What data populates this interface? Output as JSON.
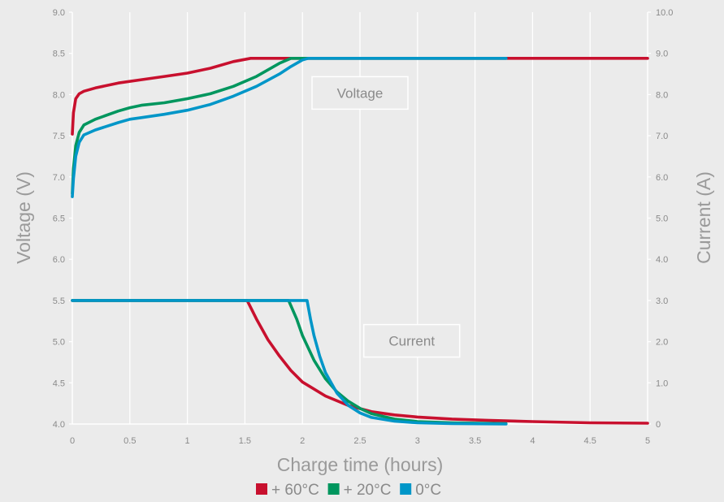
{
  "chart_data": {
    "type": "line",
    "title": "",
    "xlabel": "Charge time (hours)",
    "ylabel": "Voltage (V)",
    "y2label": "Current (A)",
    "xlim": [
      0,
      5
    ],
    "ylim": [
      4.0,
      9.0
    ],
    "y2lim": [
      0,
      10.0
    ],
    "x_ticks": [
      "0",
      "0.5",
      "1",
      "1.5",
      "2",
      "2.5",
      "3",
      "3.5",
      "4",
      "4.5",
      "5"
    ],
    "y_ticks": [
      "4.0",
      "4.5",
      "5.0",
      "5.5",
      "6.0",
      "6.5",
      "7.0",
      "7.5",
      "8.0",
      "8.5",
      "9.0"
    ],
    "y2_ticks": [
      "0",
      "1.0",
      "2.0",
      "3.0",
      "4.0",
      "5.0",
      "6.0",
      "7.0",
      "8.0",
      "9.0",
      "10.0"
    ],
    "grid": "vertical",
    "legend_position": "bottom",
    "annotations": [
      {
        "text": "Voltage",
        "x": 2.5,
        "y": 8.02
      },
      {
        "text": "Current",
        "x": 2.95,
        "y": 5.01
      }
    ],
    "series": [
      {
        "name": "+ 60°C",
        "quantity": "voltage",
        "axis": "left",
        "color": "#c8102e",
        "x": [
          0,
          0.01,
          0.03,
          0.06,
          0.1,
          0.2,
          0.4,
          0.6,
          0.8,
          1.0,
          1.2,
          1.4,
          1.55,
          2.0,
          3.0,
          4.0,
          5.0
        ],
        "y": [
          7.52,
          7.78,
          7.95,
          8.01,
          8.04,
          8.08,
          8.14,
          8.18,
          8.22,
          8.26,
          8.32,
          8.4,
          8.44,
          8.44,
          8.44,
          8.44,
          8.44
        ]
      },
      {
        "name": "+ 20°C",
        "quantity": "voltage",
        "axis": "left",
        "color": "#00965e",
        "x": [
          0,
          0.01,
          0.03,
          0.06,
          0.1,
          0.2,
          0.4,
          0.5,
          0.6,
          0.8,
          1.0,
          1.2,
          1.4,
          1.6,
          1.8,
          1.9,
          2.0,
          3.0,
          3.77
        ],
        "y": [
          6.8,
          7.1,
          7.38,
          7.54,
          7.63,
          7.7,
          7.8,
          7.84,
          7.87,
          7.9,
          7.95,
          8.01,
          8.1,
          8.22,
          8.38,
          8.44,
          8.44,
          8.44,
          8.44
        ]
      },
      {
        "name": "0°C",
        "quantity": "voltage",
        "axis": "left",
        "color": "#0096c8",
        "x": [
          0,
          0.01,
          0.03,
          0.06,
          0.1,
          0.2,
          0.4,
          0.5,
          0.6,
          0.8,
          1.0,
          1.2,
          1.4,
          1.6,
          1.8,
          1.9,
          2.0,
          2.05,
          3.0,
          3.77
        ],
        "y": [
          6.76,
          6.98,
          7.25,
          7.42,
          7.51,
          7.57,
          7.66,
          7.7,
          7.72,
          7.76,
          7.81,
          7.88,
          7.98,
          8.1,
          8.25,
          8.34,
          8.42,
          8.44,
          8.44,
          8.44
        ]
      },
      {
        "name": "+ 60°C",
        "quantity": "current",
        "axis": "right",
        "color": "#c8102e",
        "x": [
          0,
          1.52,
          1.6,
          1.7,
          1.8,
          1.9,
          2.0,
          2.2,
          2.4,
          2.6,
          2.8,
          3.0,
          3.3,
          3.6,
          4.0,
          4.5,
          5.0
        ],
        "y": [
          3.0,
          3.0,
          2.55,
          2.05,
          1.65,
          1.3,
          1.02,
          0.68,
          0.45,
          0.3,
          0.22,
          0.17,
          0.12,
          0.09,
          0.06,
          0.03,
          0.02
        ]
      },
      {
        "name": "+ 20°C",
        "quantity": "current",
        "axis": "right",
        "color": "#00965e",
        "x": [
          0,
          1.88,
          1.95,
          2.0,
          2.1,
          2.2,
          2.3,
          2.4,
          2.5,
          2.6,
          2.8,
          3.0,
          3.3,
          3.77
        ],
        "y": [
          3.0,
          3.0,
          2.55,
          2.15,
          1.55,
          1.1,
          0.78,
          0.55,
          0.38,
          0.25,
          0.12,
          0.06,
          0.03,
          0.01
        ]
      },
      {
        "name": "0°C",
        "quantity": "current",
        "axis": "right",
        "color": "#0096c8",
        "x": [
          0,
          2.04,
          2.07,
          2.1,
          2.15,
          2.2,
          2.3,
          2.4,
          2.5,
          2.6,
          2.8,
          3.0,
          3.3,
          3.77
        ],
        "y": [
          3.0,
          3.0,
          2.55,
          2.15,
          1.65,
          1.25,
          0.75,
          0.45,
          0.27,
          0.16,
          0.07,
          0.03,
          0.01,
          0.0
        ]
      }
    ],
    "legend": [
      {
        "label": "+ 60°C",
        "color": "#c8102e"
      },
      {
        "label": "+ 20°C",
        "color": "#00965e"
      },
      {
        "label": "0°C",
        "color": "#0096c8"
      }
    ]
  }
}
